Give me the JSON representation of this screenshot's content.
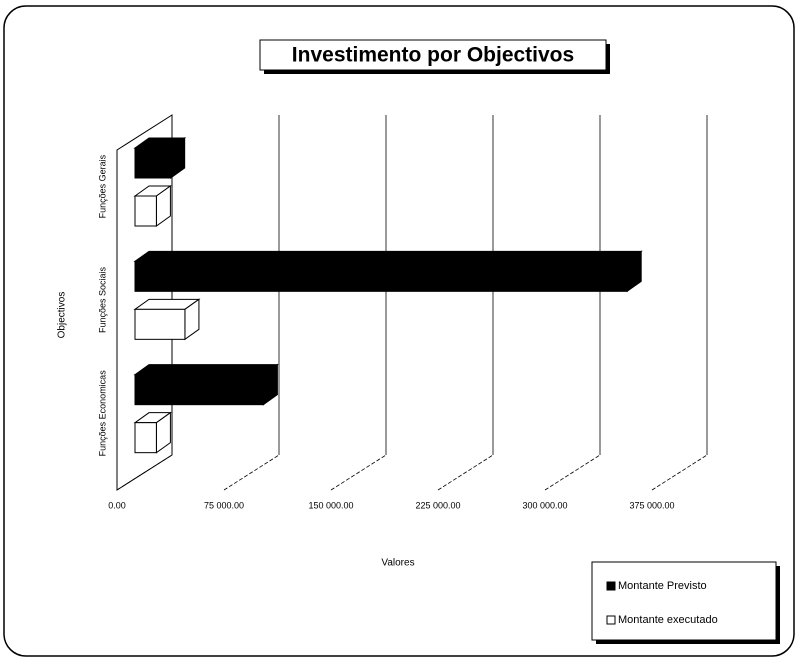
{
  "chart_data": {
    "type": "bar3d-horizontal",
    "title": "Investimento por Objectivos",
    "x_label": "Valores",
    "y_label": "Objectivos",
    "categories": [
      "Funções Economicas",
      "Funções Sociais",
      "Funções Gerais"
    ],
    "series": [
      {
        "name": "Montante Previsto",
        "color": "#000000",
        "values": [
          90000,
          345000,
          25000
        ]
      },
      {
        "name": "Montante executado",
        "color": "#ffffff",
        "values": [
          15000,
          35000,
          15000
        ]
      }
    ],
    "xlim": [
      0,
      375000
    ],
    "xticks": [
      {
        "value": 0,
        "label": "0.00"
      },
      {
        "value": 75000,
        "label": "75 000.00"
      },
      {
        "value": 150000,
        "label": "150 000.00"
      },
      {
        "value": 225000,
        "label": "225 000.00"
      },
      {
        "value": 300000,
        "label": "300 000.00"
      },
      {
        "value": 375000,
        "label": "375 000.00"
      }
    ],
    "grid": true,
    "legend": "bottom-right"
  }
}
